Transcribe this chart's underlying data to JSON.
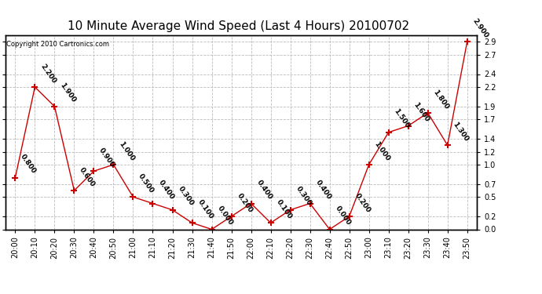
{
  "title": "10 Minute Average Wind Speed (Last 4 Hours) 20100702",
  "copyright": "Copyright 2010 Cartronics.com",
  "x_labels": [
    "20:00",
    "20:10",
    "20:20",
    "20:30",
    "20:40",
    "20:50",
    "21:00",
    "21:10",
    "21:20",
    "21:30",
    "21:40",
    "21:50",
    "22:00",
    "22:10",
    "22:20",
    "22:30",
    "22:40",
    "22:50",
    "23:00",
    "23:10",
    "23:20",
    "23:30",
    "23:40",
    "23:50"
  ],
  "y_values": [
    0.8,
    2.2,
    1.9,
    0.6,
    0.9,
    1.0,
    0.5,
    0.4,
    0.3,
    0.1,
    0.0,
    0.2,
    0.4,
    0.1,
    0.3,
    0.4,
    0.0,
    0.2,
    1.0,
    1.5,
    1.6,
    1.8,
    1.3,
    2.9
  ],
  "line_color": "#cc0000",
  "marker": "+",
  "marker_size": 6,
  "marker_color": "#cc0000",
  "background_color": "#ffffff",
  "grid_color": "#bbbbbb",
  "ylim": [
    0.0,
    3.0
  ],
  "yticks": [
    0.0,
    0.2,
    0.5,
    0.7,
    1.0,
    1.2,
    1.4,
    1.7,
    1.9,
    2.2,
    2.4,
    2.7,
    2.9
  ],
  "title_fontsize": 11,
  "tick_fontsize": 7,
  "annotation_fontsize": 6.5,
  "annotation_rotation": -55,
  "copyright_fontsize": 6
}
